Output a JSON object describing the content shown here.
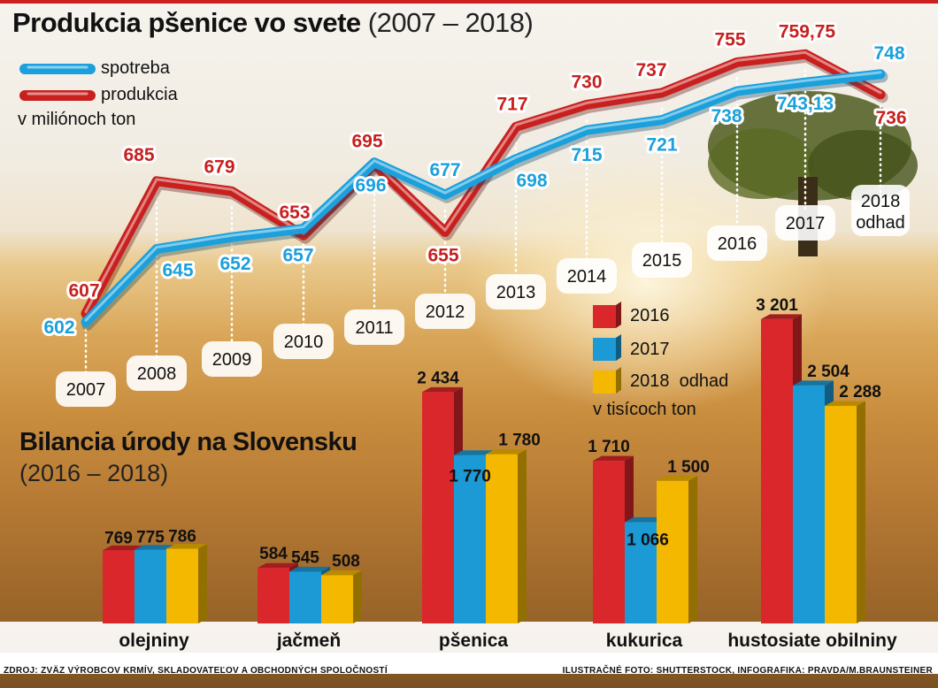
{
  "header": {
    "title_bold": "Produkcia pšenice vo svete",
    "title_range": "(2007 – 2018)",
    "legend_spotreba": "spotreba",
    "legend_produkcia": "produkcia",
    "unit": "v miliónoch ton"
  },
  "colors": {
    "produkcia": "#c8201e",
    "spotreba": "#1ba0dc",
    "y2016": "#d9272b",
    "y2017": "#1c9ad6",
    "y2018": "#f5b800"
  },
  "chart_data": [
    {
      "type": "line",
      "title": "Produkcia pšenice vo svete (2007 – 2018)",
      "ylabel": "v miliónoch ton",
      "x": [
        "2007",
        "2008",
        "2009",
        "2010",
        "2011",
        "2012",
        "2013",
        "2014",
        "2015",
        "2016",
        "2017",
        "2018\nodhad"
      ],
      "series": [
        {
          "name": "spotreba",
          "values": [
            602,
            645,
            652,
            657,
            696,
            677,
            698,
            715,
            721,
            738,
            743.13,
            748
          ],
          "labels": [
            "602",
            "645",
            "652",
            "657",
            "696",
            "677",
            "698",
            "715",
            "721",
            "738",
            "743,13",
            "748"
          ]
        },
        {
          "name": "produkcia",
          "values": [
            607,
            685,
            679,
            653,
            695,
            655,
            717,
            730,
            737,
            755,
            759.75,
            736
          ],
          "labels": [
            "607",
            "685",
            "679",
            "653",
            "695",
            "655",
            "717",
            "730",
            "737",
            "755",
            "759,75",
            "736"
          ]
        }
      ]
    },
    {
      "type": "bar",
      "title": "Bilancia úrody na Slovensku",
      "subtitle": "(2016 – 2018)",
      "ylabel": "v tisícoch ton",
      "categories": [
        "olejniny",
        "jačmeň",
        "pšenica",
        "kukurica",
        "hustosiate obilniny"
      ],
      "series": [
        {
          "name": "2016",
          "values": [
            769,
            584,
            2434,
            1710,
            3201
          ],
          "labels": [
            "769",
            "584",
            "2 434",
            "1 710",
            "3 201"
          ]
        },
        {
          "name": "2017",
          "values": [
            775,
            545,
            1770,
            1066,
            2504
          ],
          "labels": [
            "775",
            "545",
            "1 770",
            "1 066",
            "2 504"
          ]
        },
        {
          "name": "2018 odhad",
          "values": [
            786,
            508,
            1780,
            1500,
            2288
          ],
          "labels": [
            "786",
            "508",
            "1 780",
            "1 500",
            "2 288"
          ]
        }
      ]
    }
  ],
  "bars_section": {
    "title": "Bilancia úrody na Slovensku",
    "range": "(2016 – 2018)",
    "legend": [
      "2016",
      "2017",
      "2018  odhad"
    ],
    "unit": "v tisícoch ton"
  },
  "footer": {
    "source": "ZDROJ: ZVÄZ VÝROBCOV KRMÍV, SKLADOVATEĽOV A OBCHODNÝCH SPOLOČNOSTÍ",
    "credits": "ILUSTRAČNÉ FOTO: SHUTTERSTOCK, INFOGRAFIKA: PRAVDA/M.BRAUNSTEINER"
  }
}
